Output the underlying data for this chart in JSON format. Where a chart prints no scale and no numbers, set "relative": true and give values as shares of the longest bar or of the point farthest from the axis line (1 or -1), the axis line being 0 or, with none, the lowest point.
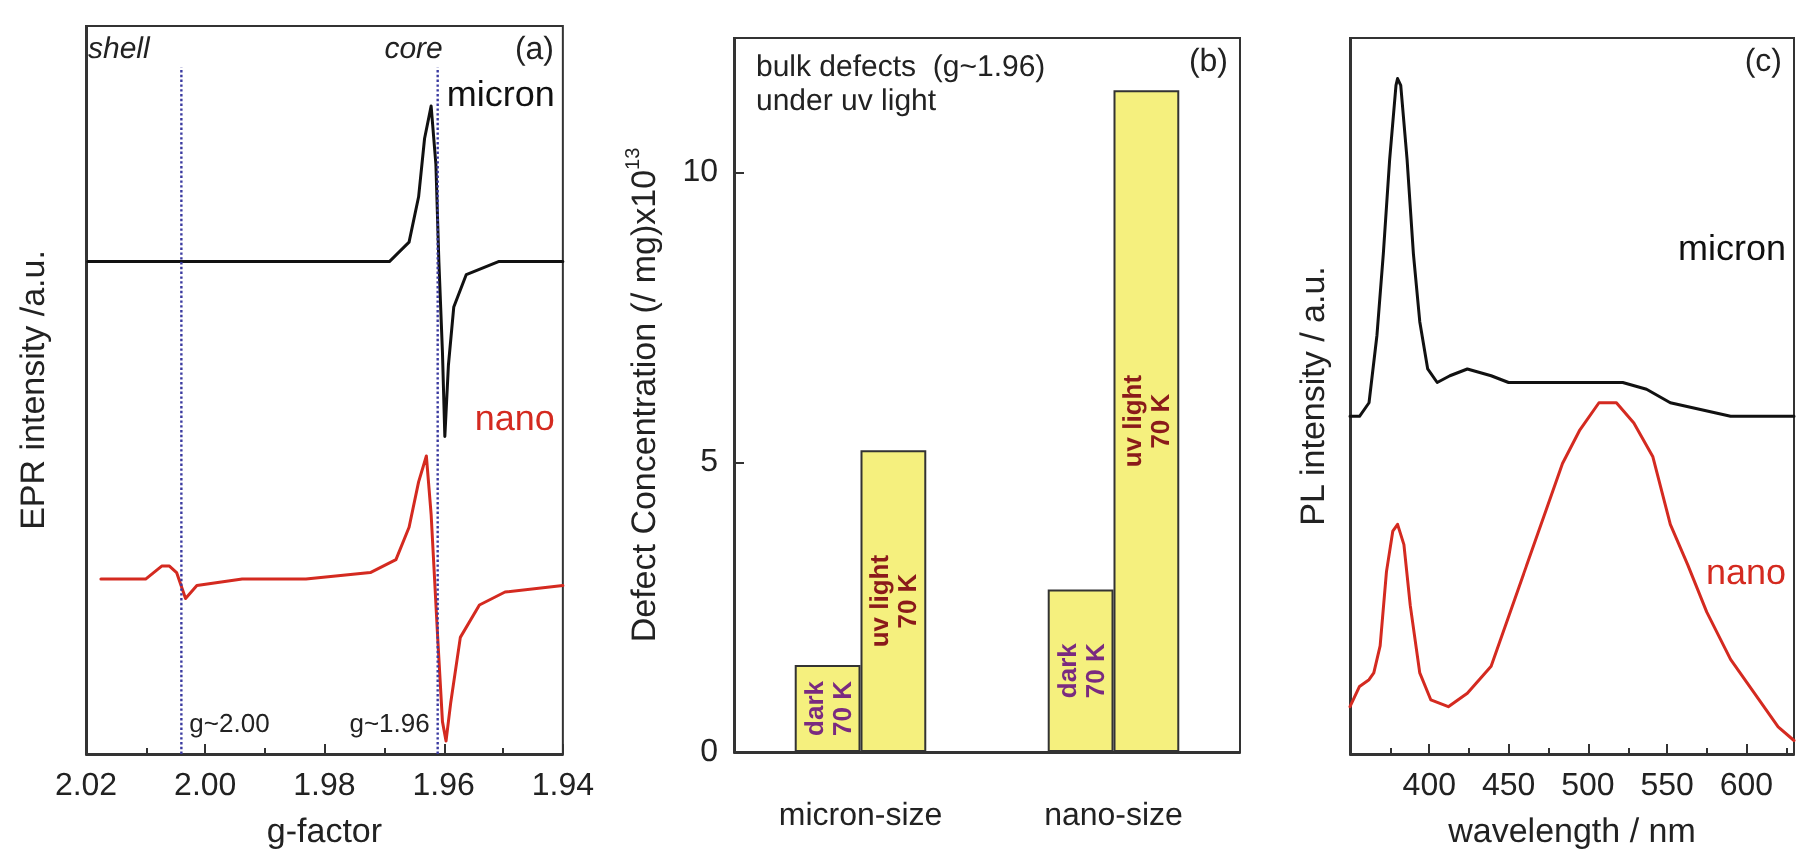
{
  "chart_data": [
    {
      "type": "line",
      "relative": true,
      "xlabel": "g-factor",
      "ylabel": "EPR intensity /a.u.",
      "xlim": [
        2.02,
        1.94
      ],
      "xticks": [
        2.02,
        {
          "value": 2,
          "label": "2.00"
        },
        1.98,
        1.96,
        1.94
      ],
      "marker": "none",
      "annotations": [
        "shell",
        "core",
        "(a)"
      ],
      "ref_lines": [
        {
          "axis": "x",
          "value": 2.004,
          "label": "g~2.00",
          "color": "#3a3aa0",
          "line_style": "dotted"
        },
        {
          "axis": "x",
          "value": 1.961,
          "label": "g~1.96",
          "color": "#3a3aa0",
          "line_style": "dotted"
        }
      ],
      "series": [
        {
          "name": "micron",
          "color": "#111111",
          "x": [
            2.0197,
            2.01,
            1.9992,
            1.9885,
            1.9777,
            1.9691,
            1.9658,
            1.9642,
            1.9632,
            1.9621,
            1.9613,
            1.9608,
            1.9602,
            1.9598,
            1.9592,
            1.9583,
            1.9562,
            1.9508,
            1.94
          ],
          "values": [
            0.76,
            0.76,
            0.76,
            0.76,
            0.76,
            0.76,
            0.79,
            0.86,
            0.95,
            1.0,
            0.91,
            0.76,
            0.62,
            0.49,
            0.6,
            0.69,
            0.74,
            0.76,
            0.76
          ]
        },
        {
          "name": "nano",
          "color": "#d42a20",
          "x": [
            2.0175,
            2.01,
            2.0073,
            2.006,
            2.0048,
            2.0033,
            2.0014,
            1.9938,
            1.9831,
            1.9723,
            1.968,
            1.9658,
            1.9642,
            1.9629,
            1.9621,
            1.961,
            1.9602,
            1.9596,
            1.9588,
            1.9572,
            1.954,
            1.9497,
            1.94
          ],
          "values": [
            0.27,
            0.27,
            0.29,
            0.29,
            0.28,
            0.24,
            0.26,
            0.27,
            0.27,
            0.28,
            0.3,
            0.35,
            0.42,
            0.46,
            0.37,
            0.18,
            0.05,
            0.02,
            0.08,
            0.18,
            0.23,
            0.25,
            0.26
          ]
        }
      ]
    },
    {
      "type": "bar",
      "title": "bulk defects  (g~1.96)",
      "subtitle": "under uv light",
      "ylabel": "Defect Concentration (/ mg)x10$^{13}$",
      "categories": [
        "micron-size",
        "nano-size"
      ],
      "ylim": [
        0,
        12.3
      ],
      "yticks": [
        0,
        5,
        10
      ],
      "annotations": [
        "(b)"
      ],
      "series": [
        {
          "name": "dark\n70 K",
          "color": "#f5f07e",
          "values": [
            1.5,
            2.8
          ]
        },
        {
          "name": "uv light\n70 K",
          "color": "#f5f07e",
          "values": [
            5.2,
            11.4
          ]
        }
      ]
    },
    {
      "type": "line",
      "relative": true,
      "xlabel": "wavelength / nm",
      "ylabel": "PL intensity / a.u.",
      "xlim": [
        350,
        630
      ],
      "xticks": [
        400,
        450,
        500,
        550,
        600
      ],
      "marker": "none",
      "annotations": [
        "(c)"
      ],
      "series": [
        {
          "name": "micron",
          "color": "#111111",
          "x": [
            350,
            356,
            362,
            367,
            371,
            375,
            379,
            380,
            382,
            386,
            390,
            394,
            399,
            405,
            413,
            424,
            439,
            450,
            477,
            499,
            522,
            537,
            552,
            571,
            590,
            613,
            630
          ],
          "values": [
            0.5,
            0.5,
            0.52,
            0.62,
            0.74,
            0.88,
            0.99,
            1.0,
            0.99,
            0.88,
            0.74,
            0.64,
            0.57,
            0.55,
            0.56,
            0.57,
            0.56,
            0.55,
            0.55,
            0.55,
            0.55,
            0.54,
            0.52,
            0.51,
            0.5,
            0.5,
            0.5
          ]
        },
        {
          "name": "nano",
          "color": "#d42a20",
          "x": [
            350,
            356,
            362,
            365,
            369,
            373,
            377,
            380,
            384,
            388,
            394,
            401,
            412,
            424,
            439,
            454,
            469,
            484,
            495,
            507,
            518,
            529,
            541,
            552,
            563,
            575,
            590,
            605,
            620,
            630
          ],
          "values": [
            0.07,
            0.1,
            0.11,
            0.12,
            0.16,
            0.27,
            0.33,
            0.34,
            0.31,
            0.22,
            0.12,
            0.08,
            0.07,
            0.09,
            0.13,
            0.23,
            0.33,
            0.43,
            0.48,
            0.52,
            0.52,
            0.49,
            0.44,
            0.34,
            0.28,
            0.21,
            0.14,
            0.09,
            0.04,
            0.02
          ]
        }
      ]
    }
  ]
}
